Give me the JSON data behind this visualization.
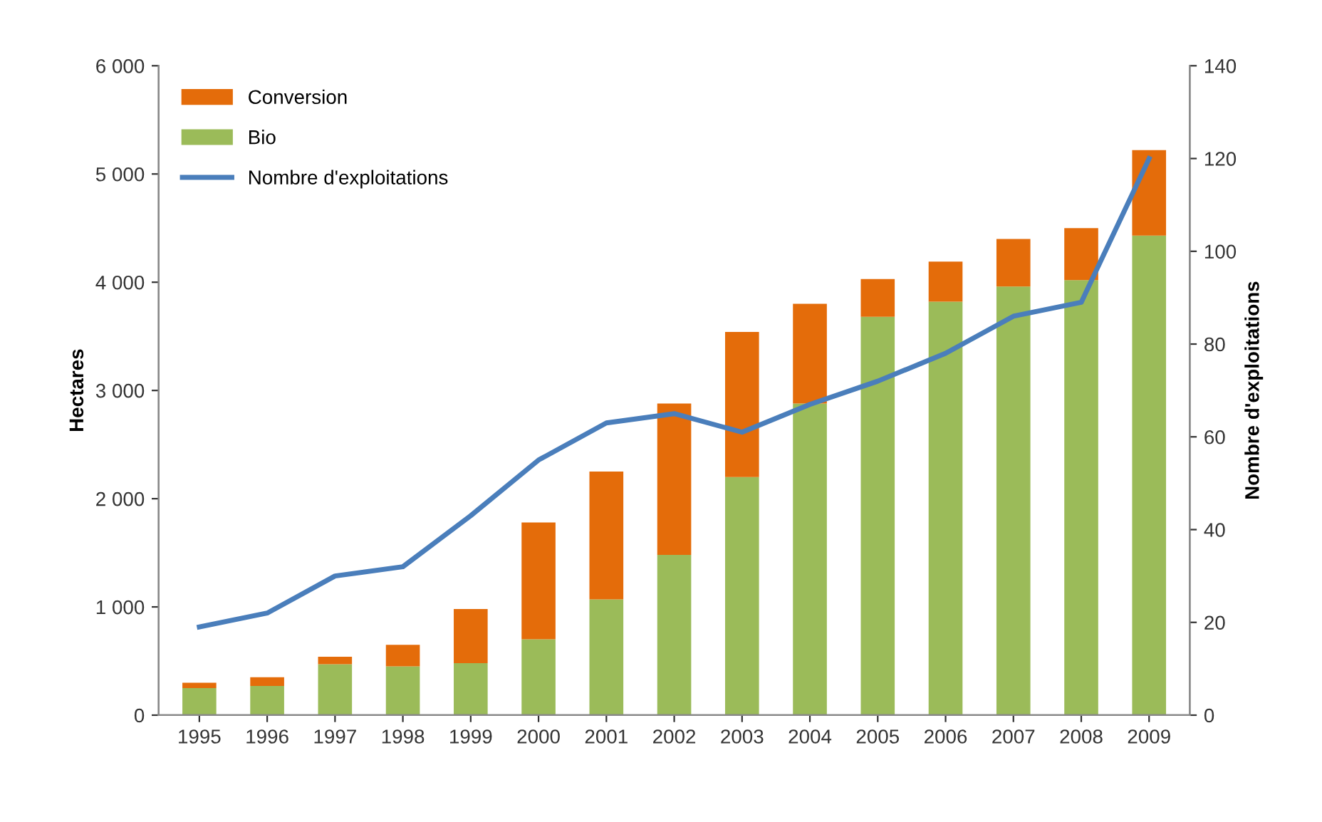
{
  "chart_data": {
    "type": "bar",
    "stacked": true,
    "ylabel": "Hectares",
    "y2label": "Nombre d'exploitations",
    "categories": [
      "1995",
      "1996",
      "1997",
      "1998",
      "1999",
      "2000",
      "2001",
      "2002",
      "2003",
      "2004",
      "2005",
      "2006",
      "2007",
      "2008",
      "2009"
    ],
    "series": [
      {
        "name": "Bio",
        "color": "#9bbb59",
        "values": [
          250,
          270,
          470,
          450,
          480,
          700,
          1070,
          1480,
          2200,
          2880,
          3680,
          3820,
          3960,
          4020,
          4430
        ]
      },
      {
        "name": "Conversion",
        "color": "#e46c0a",
        "values": [
          50,
          80,
          70,
          200,
          500,
          1080,
          1180,
          1400,
          1340,
          920,
          350,
          370,
          440,
          480,
          790
        ]
      },
      {
        "name": "Nombre d'exploitations",
        "type": "line",
        "axis": "y2",
        "color": "#4a7ebb",
        "marker": "none",
        "values": [
          19,
          22,
          30,
          32,
          43,
          55,
          63,
          65,
          61,
          67,
          72,
          78,
          86,
          89,
          120
        ]
      }
    ],
    "ylim": [
      0,
      6000
    ],
    "yticks": [
      0,
      {
        "value": 1000,
        "label": "1 000"
      },
      {
        "value": 2000,
        "label": "2 000"
      },
      {
        "value": 3000,
        "label": "3 000"
      },
      {
        "value": 4000,
        "label": "4 000"
      },
      {
        "value": 5000,
        "label": "5 000"
      },
      {
        "value": 6000,
        "label": "6 000"
      }
    ],
    "y2lim": [
      0,
      140
    ],
    "y2ticks": [
      0,
      20,
      40,
      60,
      80,
      100,
      120,
      140
    ],
    "grid": false,
    "legend": "top left"
  }
}
